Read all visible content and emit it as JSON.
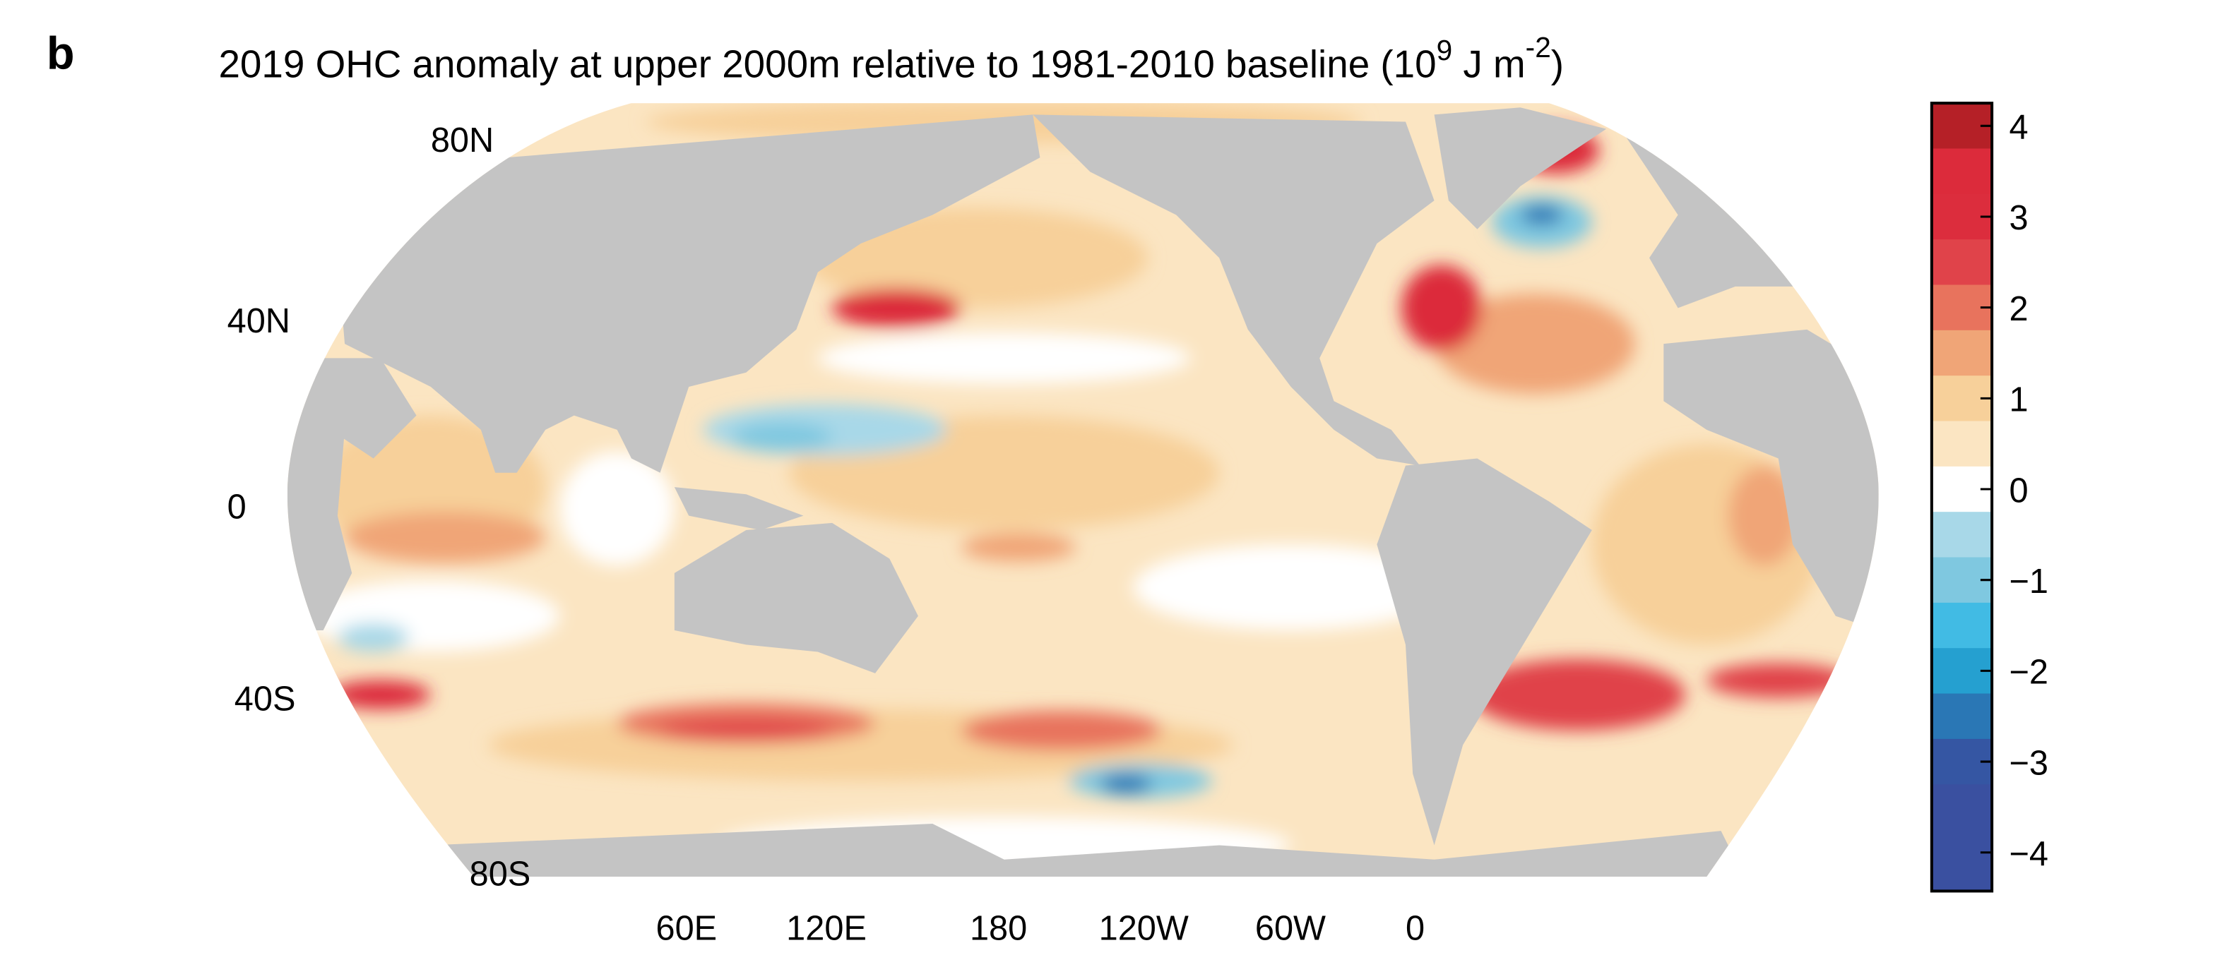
{
  "panel_label": "b",
  "title": {
    "main": "2019 OHC anomaly at upper 2000m relative to 1981-2010 baseline (10",
    "sup1": "9",
    "mid": " J m",
    "sup2": "-2",
    "end": ")"
  },
  "map": {
    "land_color": "#c4c4c4",
    "lat_labels": [
      "80N",
      "40N",
      "0",
      "40S",
      "80S"
    ],
    "lon_labels": [
      "60E",
      "120E",
      "180",
      "120W",
      "60W",
      "0"
    ]
  },
  "colorbar": {
    "range": [
      -4,
      4
    ],
    "tick_labels": [
      "4",
      "3",
      "2",
      "1",
      "0",
      "-1",
      "-2",
      "-3",
      "-4"
    ],
    "colors": [
      "#b52027",
      "#dc2b3b",
      "#dc2d3d",
      "#e0434a",
      "#e8735d",
      "#f0a577",
      "#f7d09a",
      "#fbe5c2",
      "#ffffff",
      "#a8d8e8",
      "#7fc8e0",
      "#41bbe4",
      "#25a0d0",
      "#2a77b5",
      "#3556a3",
      "#3a50a0",
      "#3a50a0"
    ]
  }
}
